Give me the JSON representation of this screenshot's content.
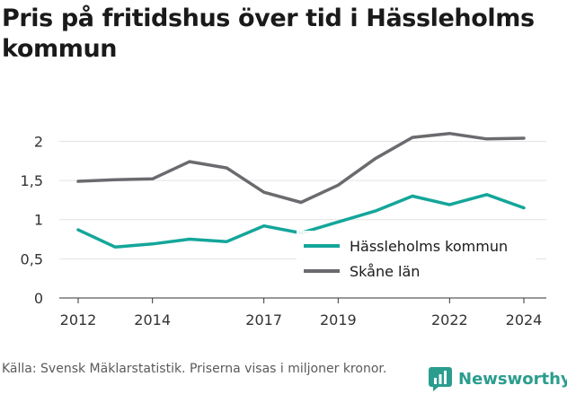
{
  "header": {
    "title": "Pris på fritidshus över tid i Hässleholms kommun"
  },
  "footer": {
    "source": "Källa: Svensk Mäklarstatistik. Priserna visas i miljoner kronor.",
    "brand": "Newsworthy",
    "brand_icon": "newsworthy-logo-icon"
  },
  "colors": {
    "hassleholm": "#14a69a",
    "skane": "#6b6b6f"
  },
  "chart_data": {
    "type": "line",
    "title": "Pris på fritidshus över tid i Hässleholms kommun",
    "xlabel": "",
    "ylabel": "",
    "x": [
      2012,
      2013,
      2014,
      2015,
      2016,
      2017,
      2018,
      2019,
      2020,
      2021,
      2022,
      2023,
      2024
    ],
    "x_ticks": [
      "2012",
      "2014",
      "2017",
      "2019",
      "2022",
      "2024"
    ],
    "x_tick_values": [
      2012,
      2014,
      2017,
      2019,
      2022,
      2024
    ],
    "y_ticks": [
      "0",
      "0,5",
      "1",
      "1,5",
      "2"
    ],
    "y_tick_values": [
      0,
      0.5,
      1,
      1.5,
      2
    ],
    "ylim": [
      0,
      2.2
    ],
    "grid": true,
    "legend_position": "lower-right",
    "series": [
      {
        "name": "Hässleholms kommun",
        "color": "#14a69a",
        "values": [
          0.87,
          0.65,
          0.69,
          0.75,
          0.72,
          0.92,
          0.83,
          0.97,
          1.11,
          1.3,
          1.19,
          1.32,
          1.15
        ]
      },
      {
        "name": "Skåne län",
        "color": "#6b6b6f",
        "values": [
          1.49,
          1.51,
          1.52,
          1.74,
          1.66,
          1.35,
          1.22,
          1.44,
          1.78,
          2.05,
          2.1,
          2.03,
          2.04
        ]
      }
    ]
  }
}
